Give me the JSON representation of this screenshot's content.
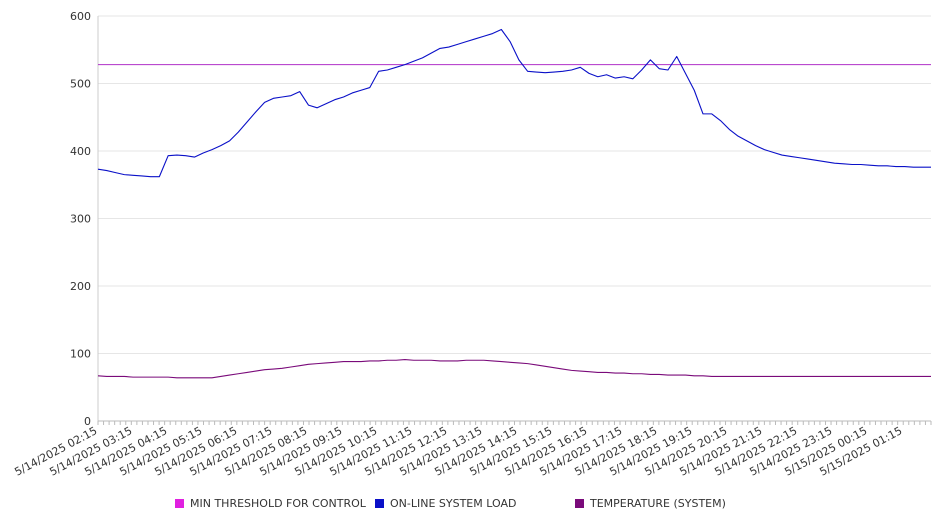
{
  "chart_data": {
    "type": "line",
    "ylim": [
      0,
      600
    ],
    "yticks": [
      0,
      100,
      200,
      300,
      400,
      500,
      600
    ],
    "x_tick_labels": [
      "5/14/2025 02:15",
      "5/14/2025 03:15",
      "5/14/2025 04:15",
      "5/14/2025 05:15",
      "5/14/2025 06:15",
      "5/14/2025 07:15",
      "5/14/2025 08:15",
      "5/14/2025 09:15",
      "5/14/2025 10:15",
      "5/14/2025 11:15",
      "5/14/2025 12:15",
      "5/14/2025 13:15",
      "5/14/2025 14:15",
      "5/14/2025 15:15",
      "5/14/2025 16:15",
      "5/14/2025 17:15",
      "5/14/2025 18:15",
      "5/14/2025 19:15",
      "5/14/2025 20:15",
      "5/14/2025 21:15",
      "5/14/2025 22:15",
      "5/14/2025 23:15",
      "5/15/2025 00:15",
      "5/15/2025 01:15"
    ],
    "x": [
      "02:15",
      "02:30",
      "02:45",
      "03:00",
      "03:15",
      "03:30",
      "03:45",
      "04:00",
      "04:15",
      "04:30",
      "04:45",
      "05:00",
      "05:15",
      "05:30",
      "05:45",
      "06:00",
      "06:15",
      "06:30",
      "06:45",
      "07:00",
      "07:15",
      "07:30",
      "07:45",
      "08:00",
      "08:15",
      "08:30",
      "08:45",
      "09:00",
      "09:15",
      "09:30",
      "09:45",
      "10:00",
      "10:15",
      "10:30",
      "10:45",
      "11:00",
      "11:15",
      "11:30",
      "11:45",
      "12:00",
      "12:15",
      "12:30",
      "12:45",
      "13:00",
      "13:15",
      "13:30",
      "13:45",
      "14:00",
      "14:15",
      "14:30",
      "14:45",
      "15:00",
      "15:15",
      "15:30",
      "15:45",
      "16:00",
      "16:15",
      "16:30",
      "16:45",
      "17:00",
      "17:15",
      "17:30",
      "17:45",
      "18:00",
      "18:15",
      "18:30",
      "18:45",
      "19:00",
      "19:15",
      "19:30",
      "19:45",
      "20:00",
      "20:15",
      "20:30",
      "20:45",
      "21:00",
      "21:15",
      "21:30",
      "21:45",
      "22:00",
      "22:15",
      "22:30",
      "22:45",
      "23:00",
      "23:15",
      "23:30",
      "23:45",
      "00:00",
      "00:15",
      "00:30",
      "00:45",
      "01:00",
      "01:15",
      "01:30",
      "01:45",
      "02:00"
    ],
    "series": [
      {
        "name": "MIN THRESHOLD FOR CONTROL",
        "color": "#b030c8",
        "values": [
          528,
          528,
          528,
          528,
          528,
          528,
          528,
          528,
          528,
          528,
          528,
          528,
          528,
          528,
          528,
          528,
          528,
          528,
          528,
          528,
          528,
          528,
          528,
          528,
          528,
          528,
          528,
          528,
          528,
          528,
          528,
          528,
          528,
          528,
          528,
          528,
          528,
          528,
          528,
          528,
          528,
          528,
          528,
          528,
          528,
          528,
          528,
          528,
          528,
          528,
          528,
          528,
          528,
          528,
          528,
          528,
          528,
          528,
          528,
          528,
          528,
          528,
          528,
          528,
          528,
          528,
          528,
          528,
          528,
          528,
          528,
          528,
          528,
          528,
          528,
          528,
          528,
          528,
          528,
          528,
          528,
          528,
          528,
          528,
          528,
          528,
          528,
          528,
          528,
          528,
          528,
          528,
          528,
          528,
          528,
          528
        ]
      },
      {
        "name": "ON-LINE SYSTEM LOAD",
        "color": "#0a10c8",
        "values": [
          373,
          371,
          368,
          365,
          364,
          363,
          362,
          362,
          393,
          394,
          393,
          391,
          397,
          402,
          408,
          415,
          428,
          443,
          458,
          472,
          478,
          480,
          482,
          488,
          468,
          464,
          470,
          476,
          480,
          486,
          490,
          494,
          518,
          520,
          524,
          528,
          533,
          538,
          545,
          552,
          554,
          558,
          562,
          566,
          570,
          574,
          580,
          562,
          535,
          518,
          517,
          516,
          517,
          518,
          520,
          524,
          515,
          510,
          513,
          508,
          510,
          507,
          520,
          535,
          522,
          520,
          540,
          515,
          490,
          455,
          455,
          445,
          432,
          422,
          415,
          408,
          402,
          398,
          394,
          392,
          390,
          388,
          386,
          384,
          382,
          381,
          380,
          380,
          379,
          378,
          378,
          377,
          377,
          376,
          376,
          376
        ]
      },
      {
        "name": "TEMPERATURE (SYSTEM)",
        "color": "#7a0a7a",
        "values": [
          67,
          66,
          66,
          66,
          65,
          65,
          65,
          65,
          65,
          64,
          64,
          64,
          64,
          64,
          66,
          68,
          70,
          72,
          74,
          76,
          77,
          78,
          80,
          82,
          84,
          85,
          86,
          87,
          88,
          88,
          88,
          89,
          89,
          90,
          90,
          91,
          90,
          90,
          90,
          89,
          89,
          89,
          90,
          90,
          90,
          89,
          88,
          87,
          86,
          85,
          83,
          81,
          79,
          77,
          75,
          74,
          73,
          72,
          72,
          71,
          71,
          70,
          70,
          69,
          69,
          68,
          68,
          68,
          67,
          67,
          66,
          66,
          66,
          66,
          66,
          66,
          66,
          66,
          66,
          66,
          66,
          66,
          66,
          66,
          66,
          66,
          66,
          66,
          66,
          66,
          66,
          66,
          66,
          66,
          66,
          66
        ]
      }
    ],
    "grid": true,
    "legend_position": "bottom"
  }
}
